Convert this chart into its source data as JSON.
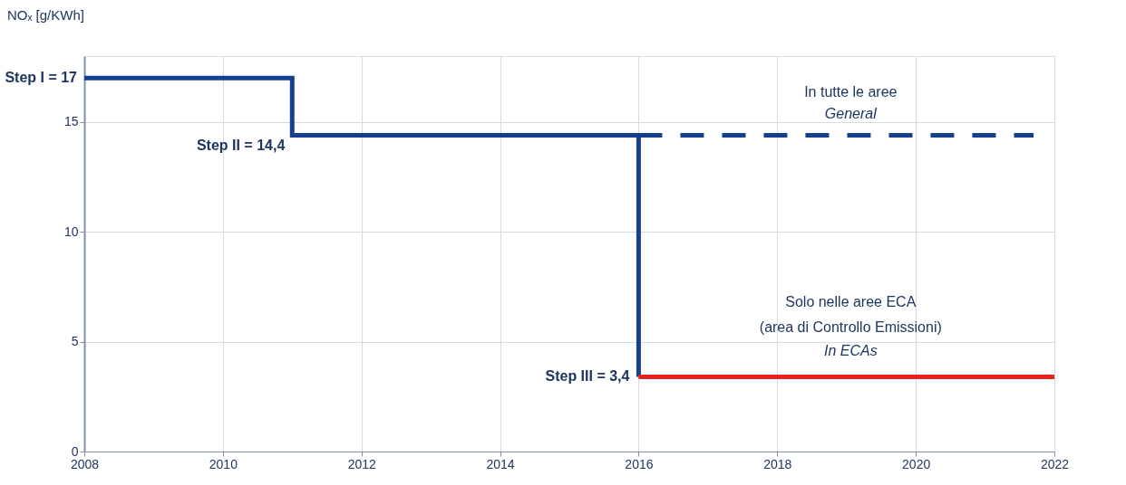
{
  "chart_data": {
    "type": "step",
    "ylabel": "NOₓ [g/KWh]",
    "xlim": [
      2008,
      2022
    ],
    "xticks": [
      2008,
      2010,
      2012,
      2014,
      2016,
      2018,
      2020,
      2022
    ],
    "ylim": [
      0,
      18
    ],
    "yticks": [
      0,
      5,
      10,
      15
    ],
    "grid": true,
    "series": [
      {
        "color": "#163f8e",
        "x": [
          2008,
          2011,
          2016,
          2016
        ],
        "values": [
          17,
          14.4,
          14.4,
          3.4
        ],
        "line_style": "solid"
      },
      {
        "type": "line",
        "color": "#163f8e",
        "x": [
          2016,
          2021.7
        ],
        "values": [
          14.4,
          14.4
        ],
        "line_style": "dashed"
      },
      {
        "type": "line",
        "color": "#e8221f",
        "x": [
          2016,
          2022
        ],
        "values": [
          3.4,
          3.4
        ],
        "line_style": "solid"
      }
    ],
    "annotations": [
      {
        "text": "Step I = 17",
        "x": 2008,
        "y": 17
      },
      {
        "text": "Step II = 14,4",
        "x": 2011,
        "y": 14.4
      },
      {
        "text": "Step III = 3,4",
        "x": 2016,
        "y": 3.4
      },
      "In tutte le aree",
      "General",
      "Solo nelle aree ECA",
      "(area di Controllo Emissioni)",
      "In ECAs"
    ]
  }
}
